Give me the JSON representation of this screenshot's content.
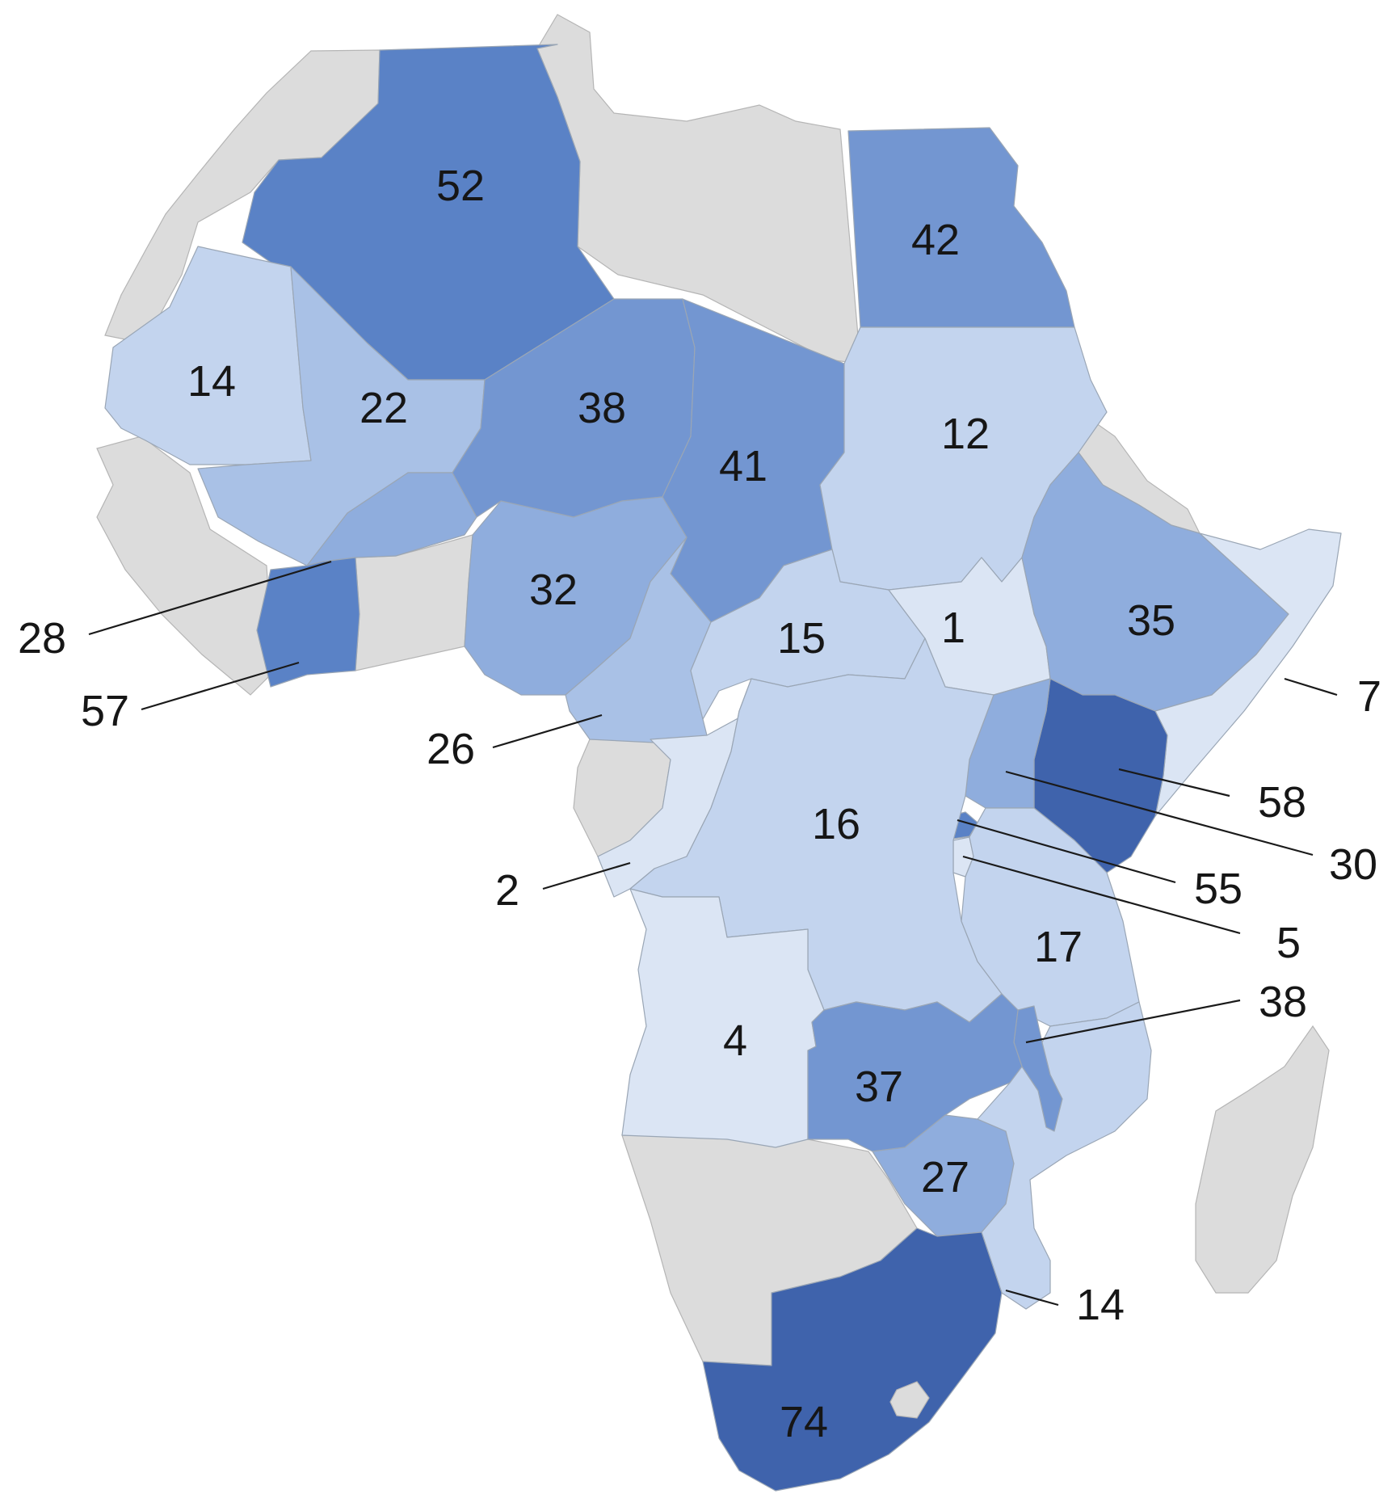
{
  "map_data": {
    "legend": null,
    "colors": {
      "no_data": "#dcdcdc",
      "scale": [
        "#dbe5f4",
        "#c3d4ee",
        "#a9c1e6",
        "#8faddd",
        "#7396d1",
        "#5a82c6",
        "#3f63ac"
      ]
    },
    "icons": [
      "madagascar-island",
      "lesotho-enclave"
    ],
    "regions": [
      {
        "name": "algeria",
        "value": "52",
        "shade": 5
      },
      {
        "name": "egypt",
        "value": "42",
        "shade": 4
      },
      {
        "name": "mauritania",
        "value": "14",
        "shade": 1
      },
      {
        "name": "mali",
        "value": "22",
        "shade": 2
      },
      {
        "name": "niger",
        "value": "38",
        "shade": 4
      },
      {
        "name": "chad",
        "value": "41",
        "shade": 4
      },
      {
        "name": "sudan",
        "value": "12",
        "shade": 1
      },
      {
        "name": "burkina-faso",
        "value": "28",
        "shade": 3
      },
      {
        "name": "cote-divoire",
        "value": "57",
        "shade": 5
      },
      {
        "name": "nigeria",
        "value": "32",
        "shade": 3
      },
      {
        "name": "cameroon",
        "value": "26",
        "shade": 2
      },
      {
        "name": "central-african-republic",
        "value": "15",
        "shade": 1
      },
      {
        "name": "south-sudan",
        "value": "1",
        "shade": 0
      },
      {
        "name": "ethiopia",
        "value": "35",
        "shade": 3
      },
      {
        "name": "somalia",
        "value": "7",
        "shade": 0
      },
      {
        "name": "kenya",
        "value": "58",
        "shade": 6
      },
      {
        "name": "uganda",
        "value": "30",
        "shade": 3
      },
      {
        "name": "rwanda",
        "value": "55",
        "shade": 5
      },
      {
        "name": "burundi",
        "value": "5",
        "shade": 0
      },
      {
        "name": "congo",
        "value": "2",
        "shade": 0
      },
      {
        "name": "dr-congo",
        "value": "16",
        "shade": 1
      },
      {
        "name": "tanzania",
        "value": "17",
        "shade": 1
      },
      {
        "name": "malawi",
        "value": "38",
        "shade": 4
      },
      {
        "name": "angola",
        "value": "4",
        "shade": 0
      },
      {
        "name": "zambia",
        "value": "37",
        "shade": 4
      },
      {
        "name": "zimbabwe",
        "value": "27",
        "shade": 3
      },
      {
        "name": "mozambique",
        "value": "14",
        "shade": 1
      },
      {
        "name": "south-africa",
        "value": "74",
        "shade": 6
      }
    ]
  }
}
